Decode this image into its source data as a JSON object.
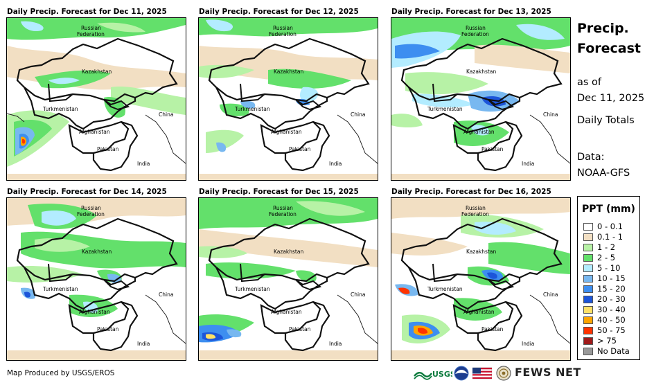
{
  "panels": [
    {
      "title": "Daily Precip. Forecast for Dec 11, 2025"
    },
    {
      "title": "Daily Precip. Forecast for Dec 12, 2025"
    },
    {
      "title": "Daily Precip. Forecast for Dec 13, 2025"
    },
    {
      "title": "Daily Precip. Forecast for Dec 14, 2025"
    },
    {
      "title": "Daily Precip. Forecast for Dec 15, 2025"
    },
    {
      "title": "Daily Precip. Forecast for Dec 16, 2025"
    }
  ],
  "map_labels": {
    "russia_line1": "Russian",
    "russia_line2": "Federation",
    "kazakhstan": "Kazakhstan",
    "turkmenistan": "Turkmenistan",
    "afghanistan": "Afghanistan",
    "pakistan": "Pakistan",
    "china": "China",
    "india": "India"
  },
  "side": {
    "title_line1": "Precip.",
    "title_line2": "Forecast",
    "as_of_line1": "as of",
    "as_of_line2": "Dec 11, 2025",
    "daily_totals": "Daily Totals",
    "data_line1": "Data:",
    "data_line2": "NOAA-GFS"
  },
  "legend": {
    "title": "PPT (mm)",
    "items": [
      {
        "label": "0 - 0.1",
        "color": "#ffffff"
      },
      {
        "label": "0.1 - 1",
        "color": "#f2dfc3"
      },
      {
        "label": "1 - 2",
        "color": "#b7f2a6"
      },
      {
        "label": "2 - 5",
        "color": "#63e06b"
      },
      {
        "label": "5 - 10",
        "color": "#b3ecff"
      },
      {
        "label": "10 - 15",
        "color": "#78b8f0"
      },
      {
        "label": "15 - 20",
        "color": "#3d8ef0"
      },
      {
        "label": "20 - 30",
        "color": "#1c55d9"
      },
      {
        "label": "30 - 40",
        "color": "#ffe066"
      },
      {
        "label": "40 - 50",
        "color": "#ffa500"
      },
      {
        "label": "50 - 75",
        "color": "#ff3300"
      },
      {
        "label": "> 75",
        "color": "#a01a1a"
      },
      {
        "label": "No Data",
        "color": "#999999"
      }
    ]
  },
  "footer": {
    "credit": "Map Produced by USGS/EROS",
    "fews": "FEWS NET",
    "usgs": "USGS"
  }
}
